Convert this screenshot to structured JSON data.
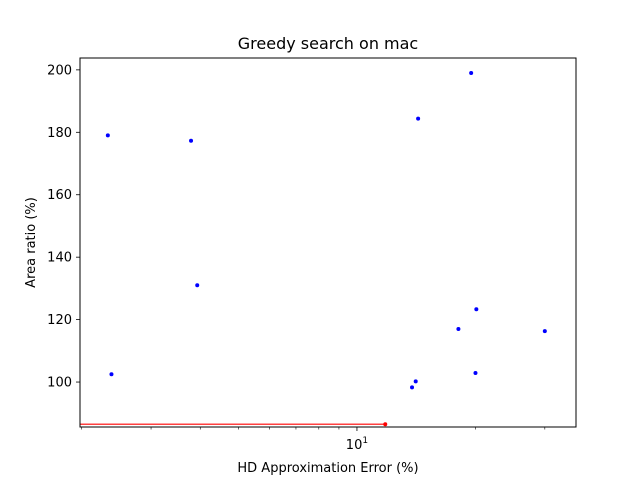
{
  "chart_data": {
    "type": "scatter",
    "title": "Greedy search on mac",
    "xlabel": "HD Approximation Error (%)",
    "ylabel": "Area ratio (%)",
    "xscale": "log",
    "xlim": [
      1.98,
      36.0
    ],
    "ylim": [
      85.6,
      203.8
    ],
    "grid": false,
    "x_major_ticks": [
      {
        "value": 10,
        "label": "10^1"
      }
    ],
    "x_minor_ticks": [
      2,
      3,
      4,
      5,
      6,
      7,
      8,
      9,
      20,
      30
    ],
    "y_ticks": [
      100,
      120,
      140,
      160,
      180,
      200
    ],
    "y_tick_labels": [
      "100",
      "120",
      "140",
      "160",
      "180",
      "200"
    ],
    "series": [
      {
        "marker_color": "#0000ff",
        "points": [
          {
            "x": 2.33,
            "y": 179.0
          },
          {
            "x": 2.38,
            "y": 102.5
          },
          {
            "x": 3.79,
            "y": 177.3
          },
          {
            "x": 3.93,
            "y": 131.0
          },
          {
            "x": 13.8,
            "y": 98.3
          },
          {
            "x": 14.1,
            "y": 100.2
          },
          {
            "x": 14.3,
            "y": 184.4
          },
          {
            "x": 18.1,
            "y": 117.0
          },
          {
            "x": 19.5,
            "y": 199.0
          },
          {
            "x": 20.0,
            "y": 102.9
          },
          {
            "x": 20.1,
            "y": 123.3
          },
          {
            "x": 30.0,
            "y": 116.3
          }
        ]
      },
      {
        "marker_color": "#ff0000",
        "line_color": "#ff0000",
        "points": [
          {
            "x": 11.8,
            "y": 86.5
          }
        ],
        "hline": {
          "y": 86.5,
          "x_from": 1.98,
          "x_to": 11.8
        }
      }
    ]
  }
}
